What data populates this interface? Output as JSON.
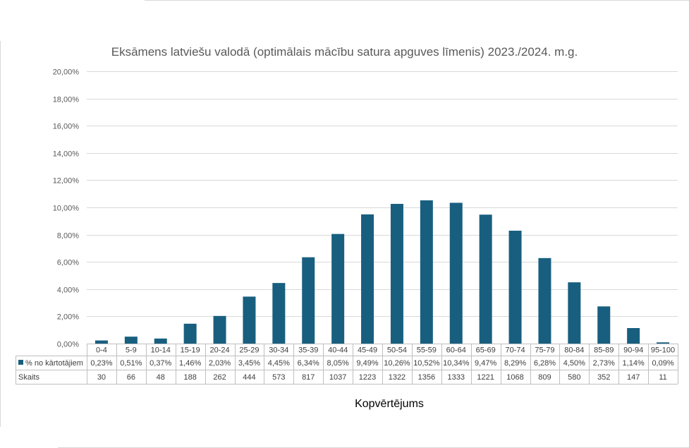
{
  "chart_data": {
    "type": "bar",
    "title": "Eksāmens latviešu valodā (optimālais mācību satura apguves līmenis) 2023./2024. m.g.",
    "xlabel": "Kopvērtējums",
    "ylabel": "",
    "ylim": [
      0,
      20
    ],
    "y_ticks": [
      "0,00%",
      "2,00%",
      "4,00%",
      "6,00%",
      "8,00%",
      "10,00%",
      "12,00%",
      "14,00%",
      "16,00%",
      "18,00%",
      "20,00%"
    ],
    "grid": true,
    "bar_color": "#185f7f",
    "categories": [
      "0-4",
      "5-9",
      "10-14",
      "15-19",
      "20-24",
      "25-29",
      "30-34",
      "35-39",
      "40-44",
      "45-49",
      "50-54",
      "55-59",
      "60-64",
      "65-69",
      "70-74",
      "75-79",
      "80-84",
      "85-89",
      "90-94",
      "95-100"
    ],
    "series": [
      {
        "name": "% no kārtotājiem",
        "values": [
          0.23,
          0.51,
          0.37,
          1.46,
          2.03,
          3.45,
          4.45,
          6.34,
          8.05,
          9.49,
          10.26,
          10.52,
          10.34,
          9.47,
          8.29,
          6.28,
          4.5,
          2.73,
          1.14,
          0.09
        ],
        "labels": [
          "0,23%",
          "0,51%",
          "0,37%",
          "1,46%",
          "2,03%",
          "3,45%",
          "4,45%",
          "6,34%",
          "8,05%",
          "9,49%",
          "10,26%",
          "10,52%",
          "10,34%",
          "9,47%",
          "8,29%",
          "6,28%",
          "4,50%",
          "2,73%",
          "1,14%",
          "0,09%"
        ]
      }
    ],
    "table_rows": [
      {
        "name": "Skaits",
        "values": [
          "30",
          "66",
          "48",
          "188",
          "262",
          "444",
          "573",
          "817",
          "1037",
          "1223",
          "1322",
          "1356",
          "1333",
          "1221",
          "1068",
          "809",
          "580",
          "352",
          "147",
          "11"
        ]
      }
    ]
  }
}
